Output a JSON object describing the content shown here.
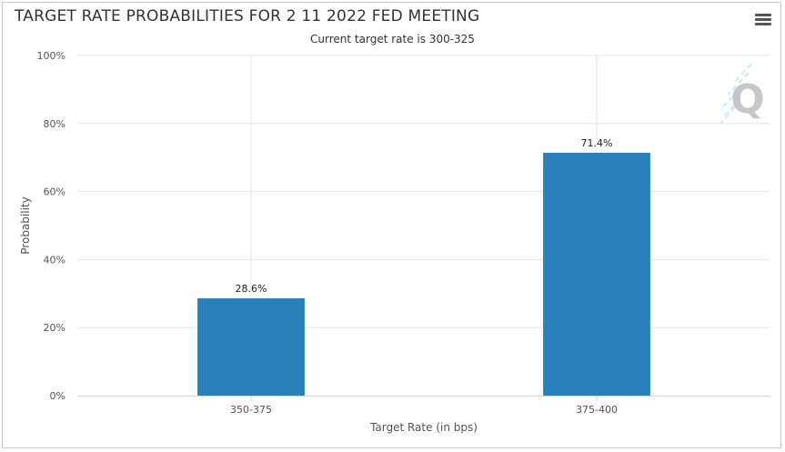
{
  "header": {
    "title": "TARGET RATE PROBABILITIES FOR 2 11 2022 FED MEETING",
    "subtitle": "Current target rate is 300-325",
    "menu_icon": "hamburger-menu-icon"
  },
  "watermark": {
    "icon": "cme-quikstrike-q-logo-icon",
    "letter": "Q"
  },
  "chart_data": {
    "type": "bar",
    "title": "TARGET RATE PROBABILITIES FOR 2 11 2022 FED MEETING",
    "subtitle": "Current target rate is 300-325",
    "categories": [
      "350-375",
      "375-400"
    ],
    "values": [
      28.6,
      71.4
    ],
    "data_labels": [
      "28.6%",
      "71.4%"
    ],
    "xlabel": "Target Rate (in bps)",
    "ylabel": "Probability",
    "ylim": [
      0,
      100
    ],
    "yticks": [
      0,
      20,
      40,
      60,
      80,
      100
    ],
    "ytick_labels": [
      "0%",
      "20%",
      "40%",
      "60%",
      "80%",
      "100%"
    ],
    "grid": true,
    "legend": "none",
    "bar_color": "#2980b9"
  }
}
